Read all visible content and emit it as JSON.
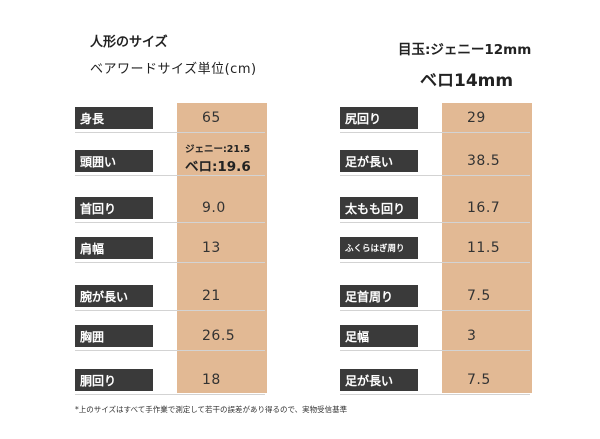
{
  "header": {
    "doll_size": "人形のサイズ",
    "unit": "ベアワードサイズ単位(cm)",
    "eyes": "目玉:ジェニー12mm",
    "bero": "ベロ14mm"
  },
  "left_table": [
    {
      "label": "身長",
      "value": "65"
    },
    {
      "label": "頭囲い",
      "value": "",
      "note1": "ジェニー:21.5",
      "note2": "ベロ:19.6"
    },
    {
      "label": "首回り",
      "value": "9.0"
    },
    {
      "label": "肩幅",
      "value": "13"
    },
    {
      "label": "腕が長い",
      "value": "21"
    },
    {
      "label": "胸囲",
      "value": "26.5"
    },
    {
      "label": "胴回り",
      "value": "18"
    }
  ],
  "right_table": [
    {
      "label": "尻回り",
      "value": "29"
    },
    {
      "label": "足が長い",
      "value": "38.5"
    },
    {
      "label": "太もも回り",
      "value": "16.7"
    },
    {
      "label": "ふくらはぎ周り",
      "value": "11.5"
    },
    {
      "label": "足首周り",
      "value": "7.5"
    },
    {
      "label": "足幅",
      "value": "3"
    },
    {
      "label": "足が長い",
      "value": "7.5"
    }
  ],
  "footnote": "*上のサイズはすべて手作業で測定して若干の誤差があり得るので、実物受信基準",
  "colors": {
    "value_column": "#e2b994",
    "label_chip": "#3a3a3a",
    "row_line": "#d3d3d3"
  }
}
